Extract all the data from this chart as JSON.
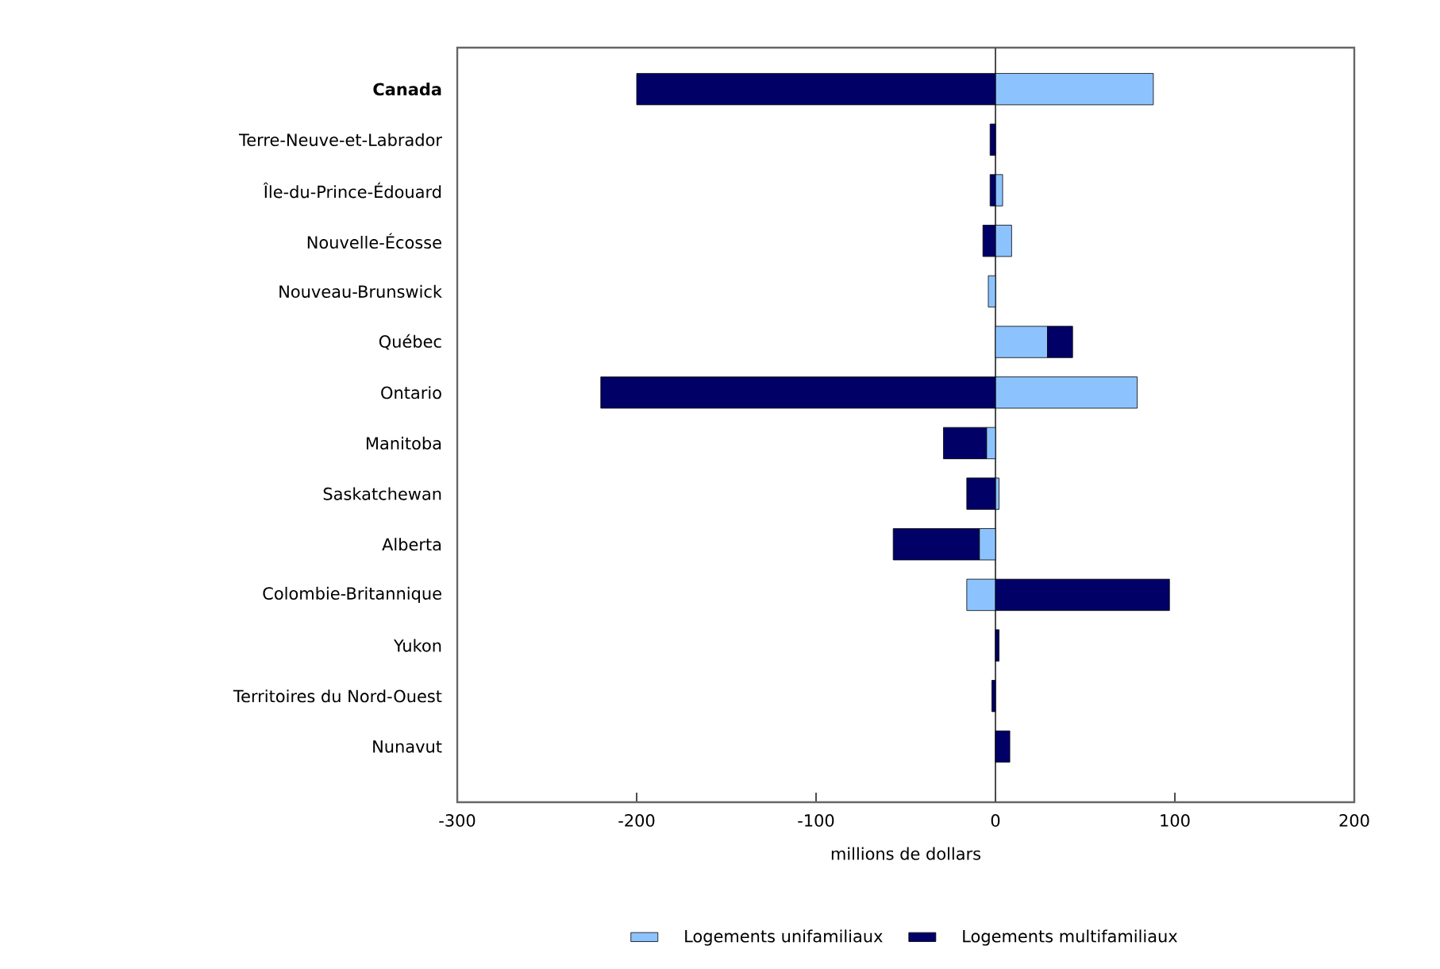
{
  "chart_data": {
    "type": "bar",
    "orientation": "horizontal",
    "stacked": true,
    "categories": [
      "Canada",
      "Terre-Neuve-et-Labrador",
      "Île-du-Prince-Édouard",
      "Nouvelle-Écosse",
      "Nouveau-Brunswick",
      "Québec",
      "Ontario",
      "Manitoba",
      "Saskatchewan",
      "Alberta",
      "Colombie-Britannique",
      "Yukon",
      "Territoires du Nord-Ouest",
      "Nunavut"
    ],
    "series": [
      {
        "name": "Logements unifamiliaux",
        "color": "#8cc3ff",
        "values": [
          88,
          null,
          4,
          9,
          -4,
          29,
          79,
          -5,
          2,
          -9,
          -16,
          null,
          null,
          null
        ]
      },
      {
        "name": "Logements multifamiliaux",
        "color": "#000066",
        "values": [
          -200,
          -3,
          -3,
          -7,
          null,
          14,
          -220,
          -24,
          -16,
          -48,
          97,
          2,
          -2,
          8
        ]
      }
    ],
    "xlim": [
      -300,
      200
    ],
    "xticks": [
      -300,
      -200,
      -100,
      0,
      100,
      200
    ],
    "xlabel": "millions de dollars",
    "legend": "bottom",
    "ref_lines": [
      {
        "axis": "x",
        "value": 0
      }
    ]
  }
}
